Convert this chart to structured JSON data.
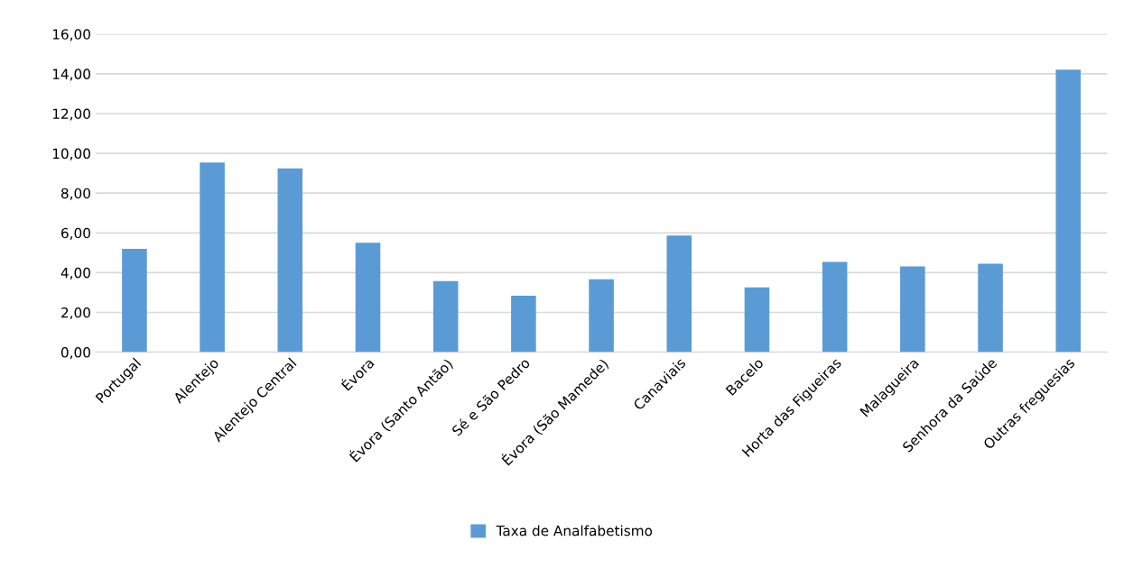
{
  "chart_data": {
    "type": "bar",
    "categories": [
      "Portugal",
      "Alentejo",
      "Alentejo Central",
      "Évora",
      "Évora (Santo Antão)",
      "Sé e São Pedro",
      "Évora (São Mamede)",
      "Canaviais",
      "Bacelo",
      "Horta das Figueiras",
      "Malagueira",
      "Senhora da Saúde",
      "Outras freguesias"
    ],
    "series": [
      {
        "name": "Taxa de Analfabetismo",
        "color": "#5b9bd5",
        "values": [
          5.2,
          9.54,
          9.25,
          5.5,
          3.58,
          2.84,
          3.67,
          5.87,
          3.26,
          4.54,
          4.31,
          4.45,
          14.21
        ]
      }
    ],
    "ylim": [
      0,
      16
    ],
    "yticks": [
      {
        "value": 0,
        "label": "0,00"
      },
      {
        "value": 2,
        "label": "2,00"
      },
      {
        "value": 4,
        "label": "4,00"
      },
      {
        "value": 6,
        "label": "6,00"
      },
      {
        "value": 8,
        "label": "8,00"
      },
      {
        "value": 10,
        "label": "10,00"
      },
      {
        "value": 12,
        "label": "12,00"
      },
      {
        "value": 14,
        "label": "14,00"
      },
      {
        "value": 16,
        "label": "16,00"
      }
    ],
    "grid": "y",
    "legend": "bottom"
  }
}
